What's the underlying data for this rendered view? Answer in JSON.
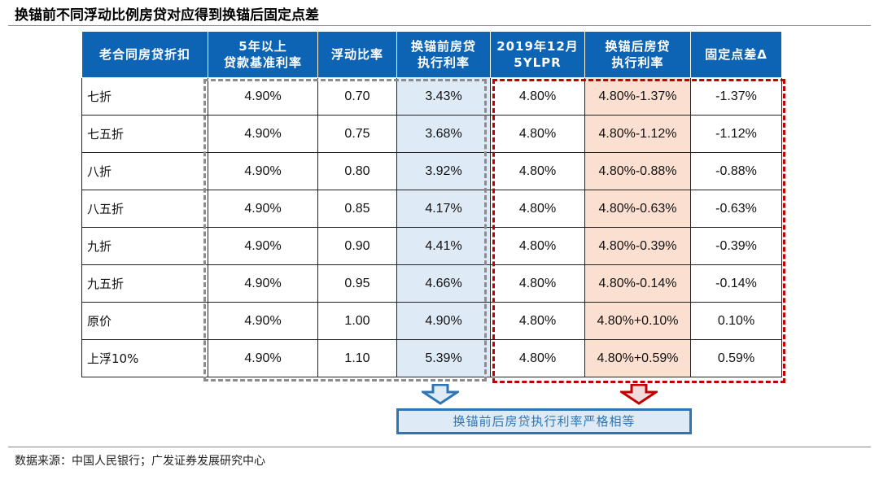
{
  "title": "换锚前不同浮动比例房贷对应得到换锚后固定点差",
  "table": {
    "headers": [
      [
        "老合同房贷折扣",
        ""
      ],
      [
        "5年以上",
        "贷款基准利率"
      ],
      [
        "浮动比率",
        ""
      ],
      [
        "换锚前房贷",
        "执行利率"
      ],
      [
        "2019年12月",
        "5YLPR"
      ],
      [
        "换锚后房贷",
        "执行利率"
      ],
      [
        "固定点差Δ",
        ""
      ]
    ],
    "rows": [
      [
        "七折",
        "4.90%",
        "0.70",
        "3.43%",
        "4.80%",
        "4.80%-1.37%",
        "-1.37%"
      ],
      [
        "七五折",
        "4.90%",
        "0.75",
        "3.68%",
        "4.80%",
        "4.80%-1.12%",
        "-1.12%"
      ],
      [
        "八折",
        "4.90%",
        "0.80",
        "3.92%",
        "4.80%",
        "4.80%-0.88%",
        "-0.88%"
      ],
      [
        "八五折",
        "4.90%",
        "0.85",
        "4.17%",
        "4.80%",
        "4.80%-0.63%",
        "-0.63%"
      ],
      [
        "九折",
        "4.90%",
        "0.90",
        "4.41%",
        "4.80%",
        "4.80%-0.39%",
        "-0.39%"
      ],
      [
        "九五折",
        "4.90%",
        "0.95",
        "4.66%",
        "4.80%",
        "4.80%-0.14%",
        "-0.14%"
      ],
      [
        "原价",
        "4.90%",
        "1.00",
        "4.90%",
        "4.80%",
        "4.80%+0.10%",
        "0.10%"
      ],
      [
        "上浮10%",
        "4.90%",
        "1.10",
        "5.39%",
        "4.80%",
        "4.80%+0.59%",
        "0.59%"
      ]
    ]
  },
  "conclusion": "换锚前后房贷执行利率严格相等",
  "source": "数据来源：中国人民银行；广发证券发展研究中心",
  "colors": {
    "header": "#0e64b4",
    "before_rate_bg": "#deebf7",
    "after_rate_bg": "#fbe0d2",
    "red_dash": "#c00000",
    "gray_dash": "#8c8c8c",
    "blue_arrow": "#2e75b6"
  }
}
